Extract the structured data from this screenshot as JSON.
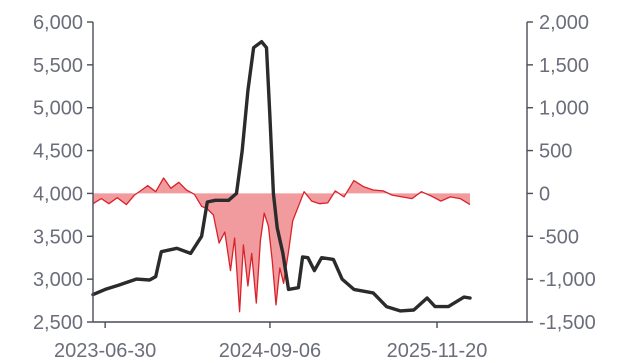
{
  "chart_data": {
    "type": "line",
    "title": "",
    "xlabel": "",
    "ylabel_left": "",
    "ylabel_right": "",
    "x_range": [
      "2023-05-29",
      "2026-07-15"
    ],
    "x_tick_labels": [
      "2023-06-30",
      "2024-09-06",
      "2025-11-20"
    ],
    "y_left": {
      "min": 2500,
      "max": 6000,
      "ticks": [
        2500,
        3000,
        3500,
        4000,
        4500,
        5000,
        5500,
        6000
      ],
      "tick_labels": [
        "2,500",
        "3,000",
        "3,500",
        "4,000",
        "4,500",
        "5,000",
        "5,500",
        "6,000"
      ]
    },
    "y_right": {
      "min": -1500,
      "max": 2000,
      "ticks": [
        -1500,
        -1000,
        -500,
        0,
        500,
        1000,
        1500,
        2000
      ],
      "tick_labels": [
        "-1,500",
        "-1,000",
        "-500",
        "0",
        "500",
        "1,000",
        "1,500",
        "2,000"
      ]
    },
    "grid": false,
    "legend": "none",
    "series": [
      {
        "axis": "left",
        "style": "line",
        "color": "#2b2b2b",
        "points": [
          [
            "2023-05-29",
            2820
          ],
          [
            "2023-06-30",
            2880
          ],
          [
            "2023-08-05",
            2930
          ],
          [
            "2023-09-20",
            3000
          ],
          [
            "2023-10-25",
            2990
          ],
          [
            "2023-11-10",
            3030
          ],
          [
            "2023-11-25",
            3320
          ],
          [
            "2024-01-05",
            3360
          ],
          [
            "2024-02-10",
            3300
          ],
          [
            "2024-03-10",
            3500
          ],
          [
            "2024-03-25",
            3900
          ],
          [
            "2024-04-15",
            3920
          ],
          [
            "2024-05-20",
            3920
          ],
          [
            "2024-06-10",
            4000
          ],
          [
            "2024-06-25",
            4500
          ],
          [
            "2024-07-10",
            5200
          ],
          [
            "2024-07-25",
            5700
          ],
          [
            "2024-08-15",
            5770
          ],
          [
            "2024-08-28",
            5700
          ],
          [
            "2024-09-06",
            4900
          ],
          [
            "2024-09-15",
            4000
          ],
          [
            "2024-09-25",
            3600
          ],
          [
            "2024-10-10",
            3300
          ],
          [
            "2024-10-25",
            2880
          ],
          [
            "2024-11-20",
            2900
          ],
          [
            "2024-12-01",
            3260
          ],
          [
            "2024-12-15",
            3250
          ],
          [
            "2025-01-01",
            3100
          ],
          [
            "2025-01-20",
            3250
          ],
          [
            "2025-02-20",
            3230
          ],
          [
            "2025-03-15",
            3000
          ],
          [
            "2025-04-15",
            2880
          ],
          [
            "2025-06-05",
            2840
          ],
          [
            "2025-07-10",
            2680
          ],
          [
            "2025-08-15",
            2630
          ],
          [
            "2025-09-20",
            2640
          ],
          [
            "2025-10-25",
            2780
          ],
          [
            "2025-11-15",
            2680
          ],
          [
            "2025-12-20",
            2680
          ],
          [
            "2026-01-30",
            2790
          ],
          [
            "2026-02-15",
            2780
          ]
        ]
      },
      {
        "axis": "right",
        "style": "area",
        "color": "#d9222a",
        "fill": "#f08a8e",
        "points": [
          [
            "2023-05-29",
            -120
          ],
          [
            "2023-06-20",
            -60
          ],
          [
            "2023-07-10",
            -120
          ],
          [
            "2023-08-01",
            -50
          ],
          [
            "2023-08-25",
            -130
          ],
          [
            "2023-09-15",
            -20
          ],
          [
            "2023-10-01",
            30
          ],
          [
            "2023-10-20",
            90
          ],
          [
            "2023-11-10",
            20
          ],
          [
            "2023-12-01",
            180
          ],
          [
            "2023-12-20",
            60
          ],
          [
            "2024-01-10",
            130
          ],
          [
            "2024-01-30",
            40
          ],
          [
            "2024-02-20",
            -10
          ],
          [
            "2024-03-10",
            -150
          ],
          [
            "2024-03-25",
            -180
          ],
          [
            "2024-04-10",
            -250
          ],
          [
            "2024-04-25",
            -580
          ],
          [
            "2024-05-10",
            -450
          ],
          [
            "2024-05-25",
            -900
          ],
          [
            "2024-06-05",
            -520
          ],
          [
            "2024-06-18",
            -1380
          ],
          [
            "2024-06-28",
            -600
          ],
          [
            "2024-07-10",
            -1080
          ],
          [
            "2024-07-20",
            -700
          ],
          [
            "2024-08-01",
            -1280
          ],
          [
            "2024-08-12",
            -550
          ],
          [
            "2024-08-22",
            -230
          ],
          [
            "2024-09-02",
            -380
          ],
          [
            "2024-09-12",
            -780
          ],
          [
            "2024-09-22",
            -1300
          ],
          [
            "2024-10-02",
            -870
          ],
          [
            "2024-10-12",
            -1050
          ],
          [
            "2024-10-25",
            -680
          ],
          [
            "2024-11-05",
            -320
          ],
          [
            "2024-11-20",
            -150
          ],
          [
            "2024-12-05",
            20
          ],
          [
            "2024-12-25",
            -90
          ],
          [
            "2025-01-15",
            -120
          ],
          [
            "2025-02-05",
            -110
          ],
          [
            "2025-02-25",
            30
          ],
          [
            "2025-03-20",
            -40
          ],
          [
            "2025-04-15",
            150
          ],
          [
            "2025-05-10",
            80
          ],
          [
            "2025-06-05",
            40
          ],
          [
            "2025-07-01",
            30
          ],
          [
            "2025-07-25",
            -20
          ],
          [
            "2025-08-20",
            -40
          ],
          [
            "2025-09-15",
            -60
          ],
          [
            "2025-10-10",
            20
          ],
          [
            "2025-11-05",
            -30
          ],
          [
            "2025-11-30",
            -90
          ],
          [
            "2025-12-25",
            -40
          ],
          [
            "2026-01-20",
            -60
          ],
          [
            "2026-02-15",
            -130
          ]
        ]
      }
    ]
  }
}
